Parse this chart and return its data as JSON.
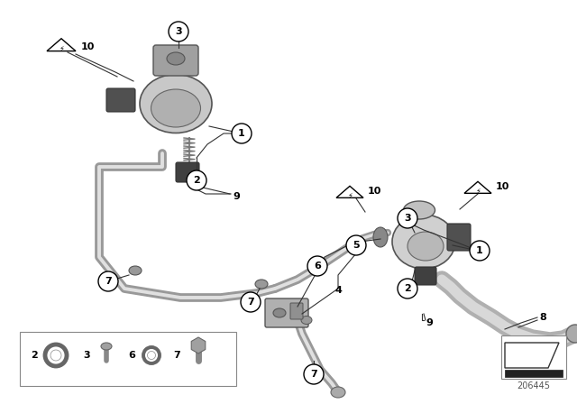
{
  "bg_color": "#ffffff",
  "fig_width": 6.4,
  "fig_height": 4.48,
  "dpi": 100,
  "diagram_number": "206445",
  "line_gray": "#888888",
  "dark_gray": "#555555",
  "mid_gray": "#aaaaaa",
  "light_gray": "#cccccc",
  "part_gray": "#b8b8b8",
  "dark_part": "#707070",
  "text_color": "#000000",
  "tube_lw": 3.5,
  "tube_edge": "#777777",
  "tube_fill": "#dddddd"
}
